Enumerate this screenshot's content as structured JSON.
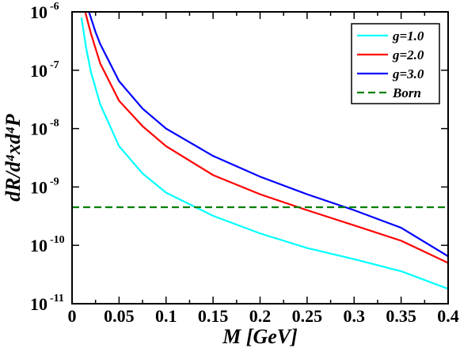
{
  "chart_data": {
    "type": "line",
    "xlabel": "M [GeV]",
    "ylabel": "dR/d⁴xd⁴P",
    "xlim": [
      0,
      0.4
    ],
    "ylim": [
      1e-11,
      1e-06
    ],
    "yscale": "log",
    "x_ticks": [
      {
        "value": 0,
        "label": "0"
      },
      {
        "value": 0.05,
        "label": "0.05"
      },
      {
        "value": 0.1,
        "label": "0.1"
      },
      {
        "value": 0.15,
        "label": "0.15"
      },
      {
        "value": 0.2,
        "label": "0.2"
      },
      {
        "value": 0.25,
        "label": "0.25"
      },
      {
        "value": 0.3,
        "label": "0.3"
      },
      {
        "value": 0.35,
        "label": "0.35"
      },
      {
        "value": 0.4,
        "label": "0.4"
      }
    ],
    "y_ticks": [
      {
        "exp": -11,
        "base": "10",
        "sup": "-11"
      },
      {
        "exp": -10,
        "base": "10",
        "sup": "-10"
      },
      {
        "exp": -9,
        "base": "10",
        "sup": "-9"
      },
      {
        "exp": -8,
        "base": "10",
        "sup": "-8"
      },
      {
        "exp": -7,
        "base": "10",
        "sup": "-7"
      },
      {
        "exp": -6,
        "base": "10",
        "sup": "-6"
      }
    ],
    "legend_position": "top-right",
    "series": [
      {
        "name": "g=1.0",
        "color": "#00ffff",
        "dash": "solid",
        "x": [
          0.01,
          0.015,
          0.02,
          0.03,
          0.05,
          0.075,
          0.1,
          0.15,
          0.2,
          0.25,
          0.3,
          0.35,
          0.4
        ],
        "y": [
          8e-07,
          2.4e-07,
          9.5e-08,
          2.6e-08,
          5e-09,
          1.7e-09,
          8e-10,
          3.2e-10,
          1.6e-10,
          9e-11,
          5.8e-11,
          3.6e-11,
          1.8e-11
        ]
      },
      {
        "name": "g=2.0",
        "color": "#ff0000",
        "dash": "solid",
        "x": [
          0.014,
          0.02,
          0.03,
          0.05,
          0.075,
          0.1,
          0.15,
          0.2,
          0.25,
          0.3,
          0.35,
          0.4
        ],
        "y": [
          1e-06,
          4.3e-07,
          1.3e-07,
          3e-08,
          1.1e-08,
          5e-09,
          1.6e-09,
          7.5e-10,
          4e-10,
          2.2e-10,
          1.2e-10,
          5e-11
        ]
      },
      {
        "name": "g=3.0",
        "color": "#0000ff",
        "dash": "solid",
        "x": [
          0.018,
          0.025,
          0.03,
          0.05,
          0.075,
          0.1,
          0.15,
          0.2,
          0.25,
          0.3,
          0.35,
          0.4
        ],
        "y": [
          1e-06,
          4.5e-07,
          2.8e-07,
          6.5e-08,
          2.2e-08,
          1e-08,
          3.4e-09,
          1.5e-09,
          7.5e-10,
          4e-10,
          2e-10,
          6.5e-11
        ]
      },
      {
        "name": "Born",
        "color": "#008000",
        "dash": "dashed",
        "x": [
          0,
          0.4
        ],
        "y": [
          4.5e-10,
          4.5e-10
        ]
      }
    ]
  }
}
